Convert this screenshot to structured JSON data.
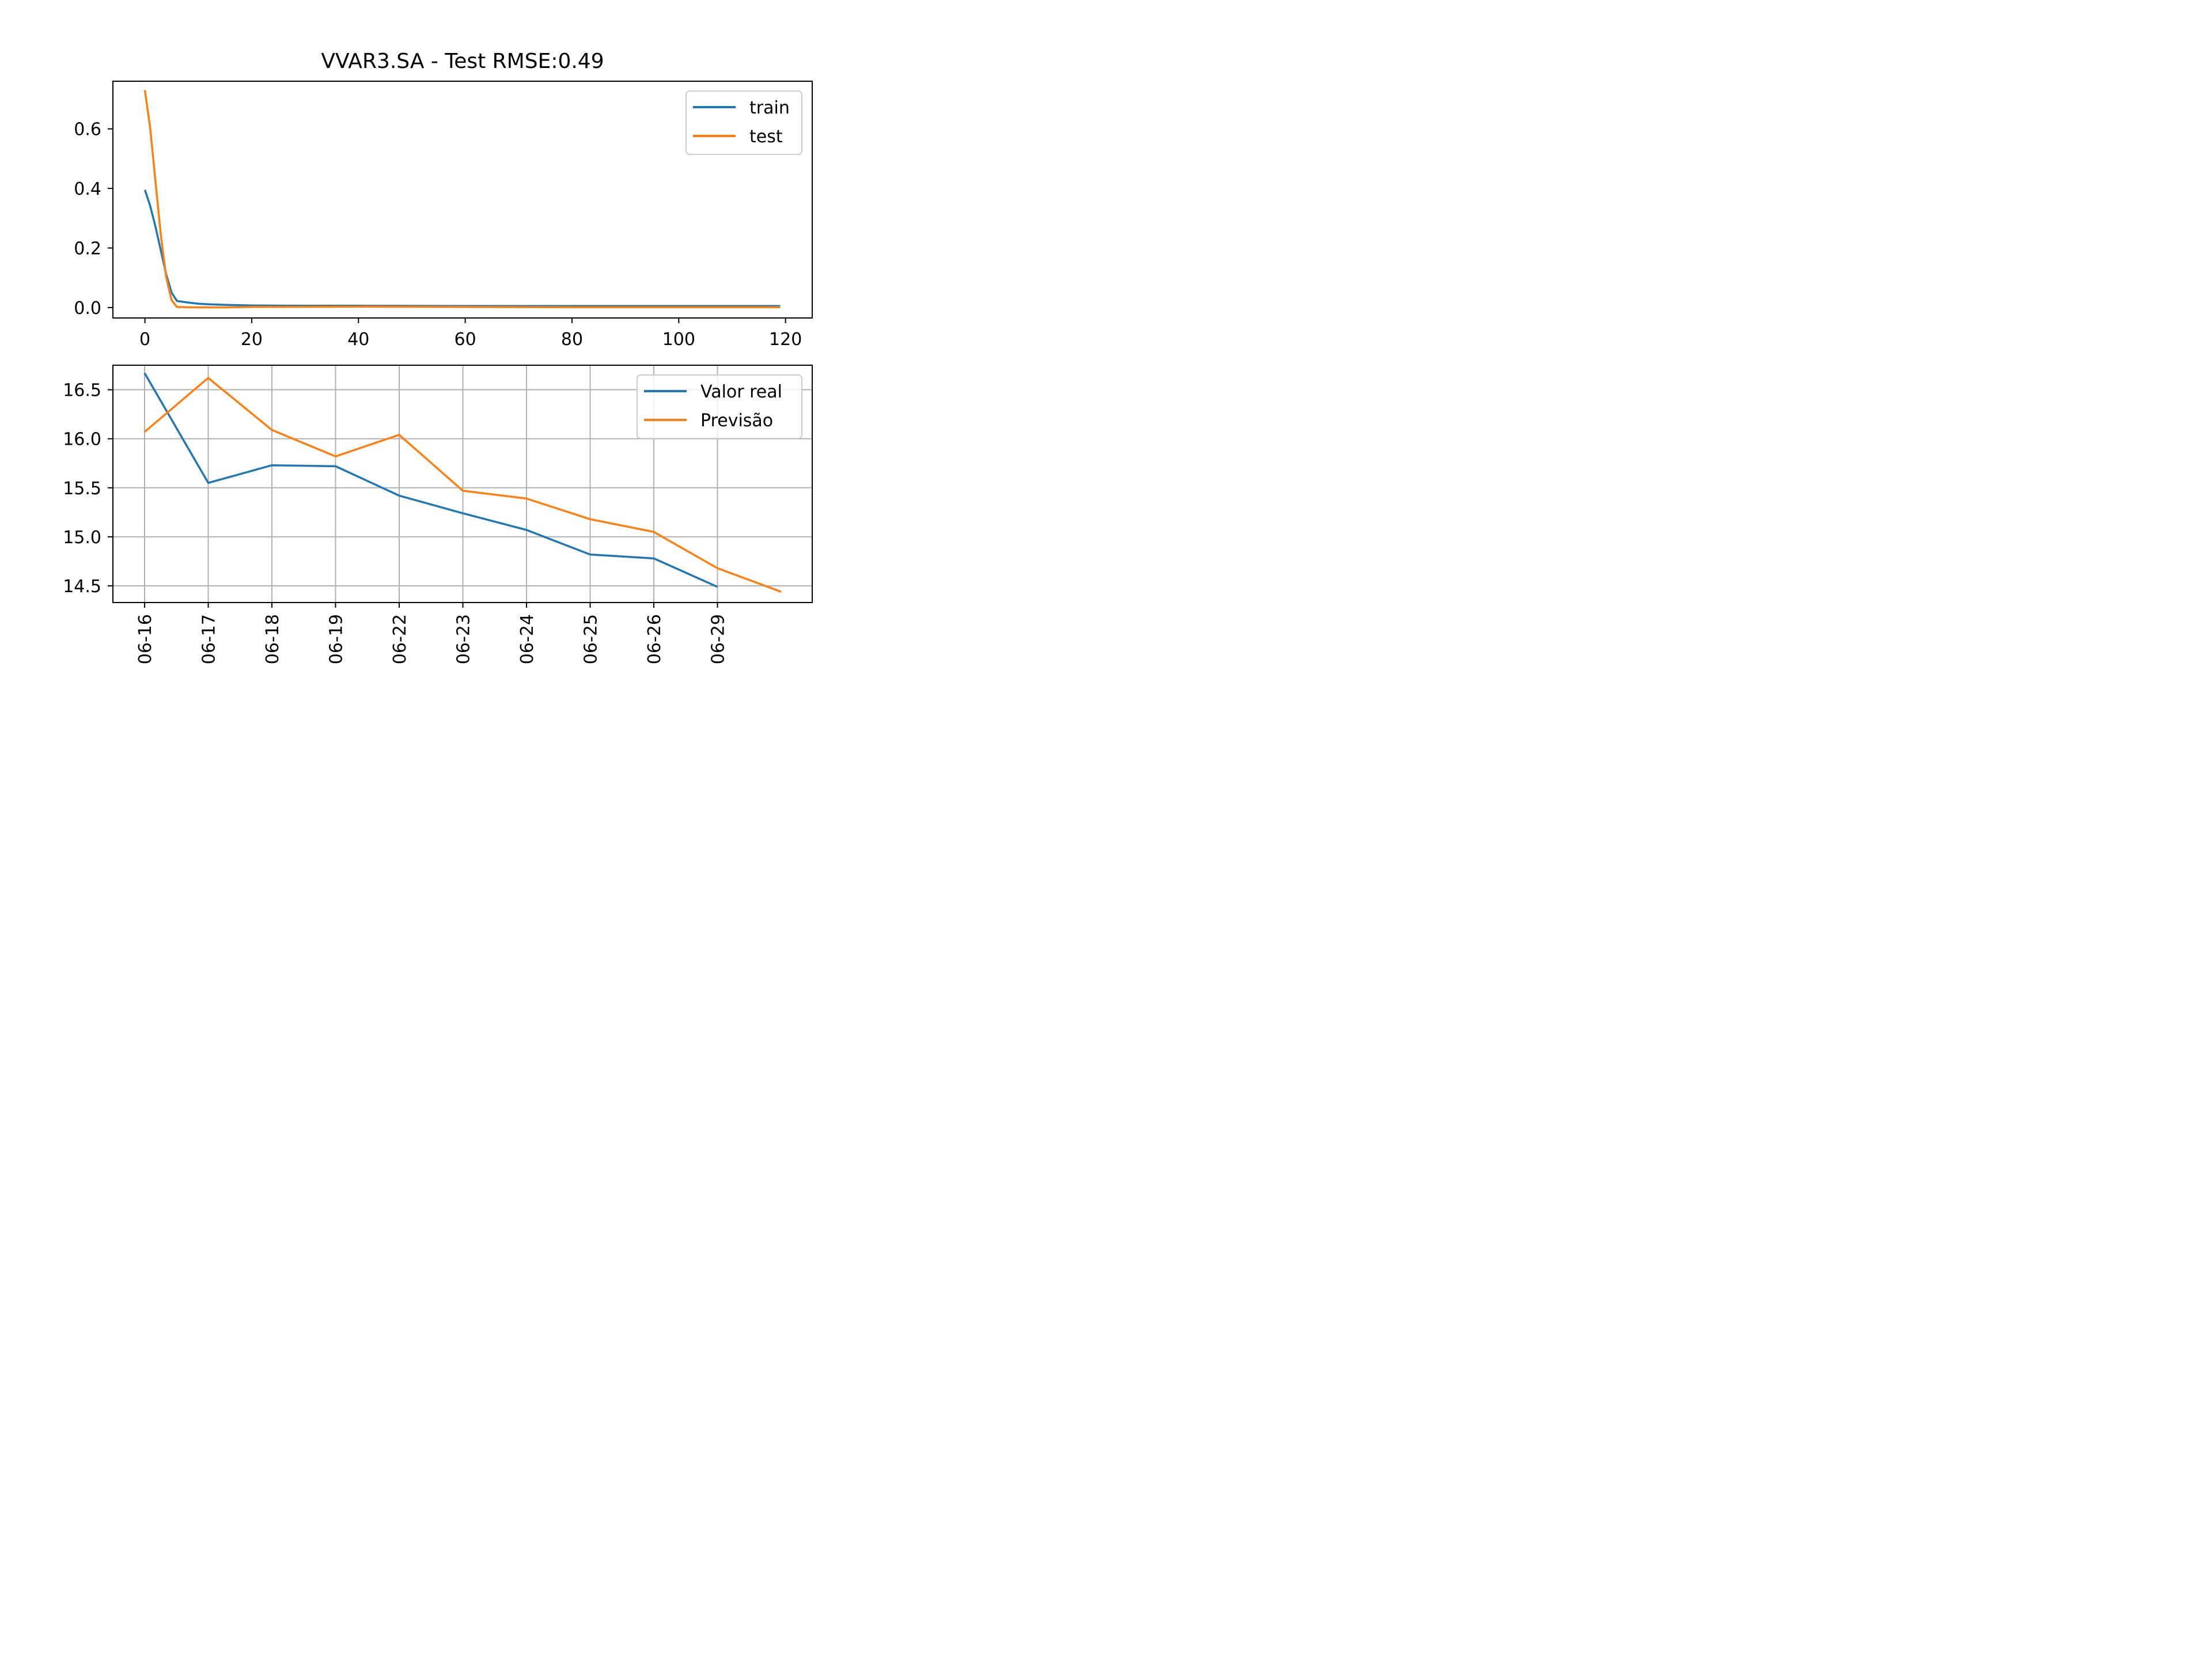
{
  "chart_data": [
    {
      "type": "line",
      "title": "VVAR3.SA - Test RMSE:0.49",
      "xlabel": "",
      "ylabel": "",
      "xlim": [
        -6,
        125
      ],
      "ylim": [
        -0.035,
        0.76
      ],
      "xticks": [
        0,
        20,
        40,
        60,
        80,
        100,
        120
      ],
      "yticks": [
        0.0,
        0.2,
        0.4,
        0.6
      ],
      "ytick_labels": [
        "0.0",
        "0.2",
        "0.4",
        "0.6"
      ],
      "grid": false,
      "legend_position": "upper right",
      "series": [
        {
          "name": "train",
          "color": "#1f77b4",
          "x": [
            0,
            1,
            2,
            3,
            4,
            5,
            6,
            8,
            10,
            12,
            15,
            20,
            30,
            40,
            60,
            80,
            100,
            119
          ],
          "y": [
            0.395,
            0.34,
            0.27,
            0.19,
            0.11,
            0.05,
            0.022,
            0.017,
            0.013,
            0.011,
            0.009,
            0.007,
            0.006,
            0.006,
            0.005,
            0.005,
            0.005,
            0.005
          ]
        },
        {
          "name": "test",
          "color": "#ff7f0e",
          "x": [
            0,
            1,
            2,
            3,
            4,
            5,
            6,
            8,
            10,
            15,
            20,
            40,
            60,
            80,
            100,
            119
          ],
          "y": [
            0.73,
            0.6,
            0.42,
            0.24,
            0.1,
            0.025,
            0.002,
            0.001,
            0.0005,
            0.0005,
            0.002,
            0.003,
            0.002,
            0.001,
            0.001,
            0.001
          ]
        }
      ]
    },
    {
      "type": "line",
      "title": "",
      "xlabel": "",
      "ylabel": "",
      "categories": [
        "06-16",
        "06-17",
        "06-18",
        "06-19",
        "06-22",
        "06-23",
        "06-24",
        "06-25",
        "06-26",
        "06-29",
        ""
      ],
      "xtick_labels": [
        "06-16",
        "06-17",
        "06-18",
        "06-19",
        "06-22",
        "06-23",
        "06-24",
        "06-25",
        "06-26",
        "06-29"
      ],
      "ylim": [
        14.33,
        16.75
      ],
      "yticks": [
        14.5,
        15.0,
        15.5,
        16.0,
        16.5
      ],
      "ytick_labels": [
        "14.5",
        "15.0",
        "15.5",
        "16.0",
        "16.5"
      ],
      "grid": true,
      "legend_position": "upper right",
      "series": [
        {
          "name": "Valor real",
          "color": "#1f77b4",
          "values": [
            16.67,
            15.55,
            15.73,
            15.72,
            15.42,
            15.24,
            15.07,
            14.82,
            14.78,
            14.49,
            null
          ]
        },
        {
          "name": "Previsão",
          "color": "#ff7f0e",
          "values": [
            16.07,
            16.62,
            16.09,
            15.82,
            16.04,
            15.47,
            15.39,
            15.18,
            15.05,
            14.68,
            14.44
          ]
        }
      ]
    }
  ]
}
